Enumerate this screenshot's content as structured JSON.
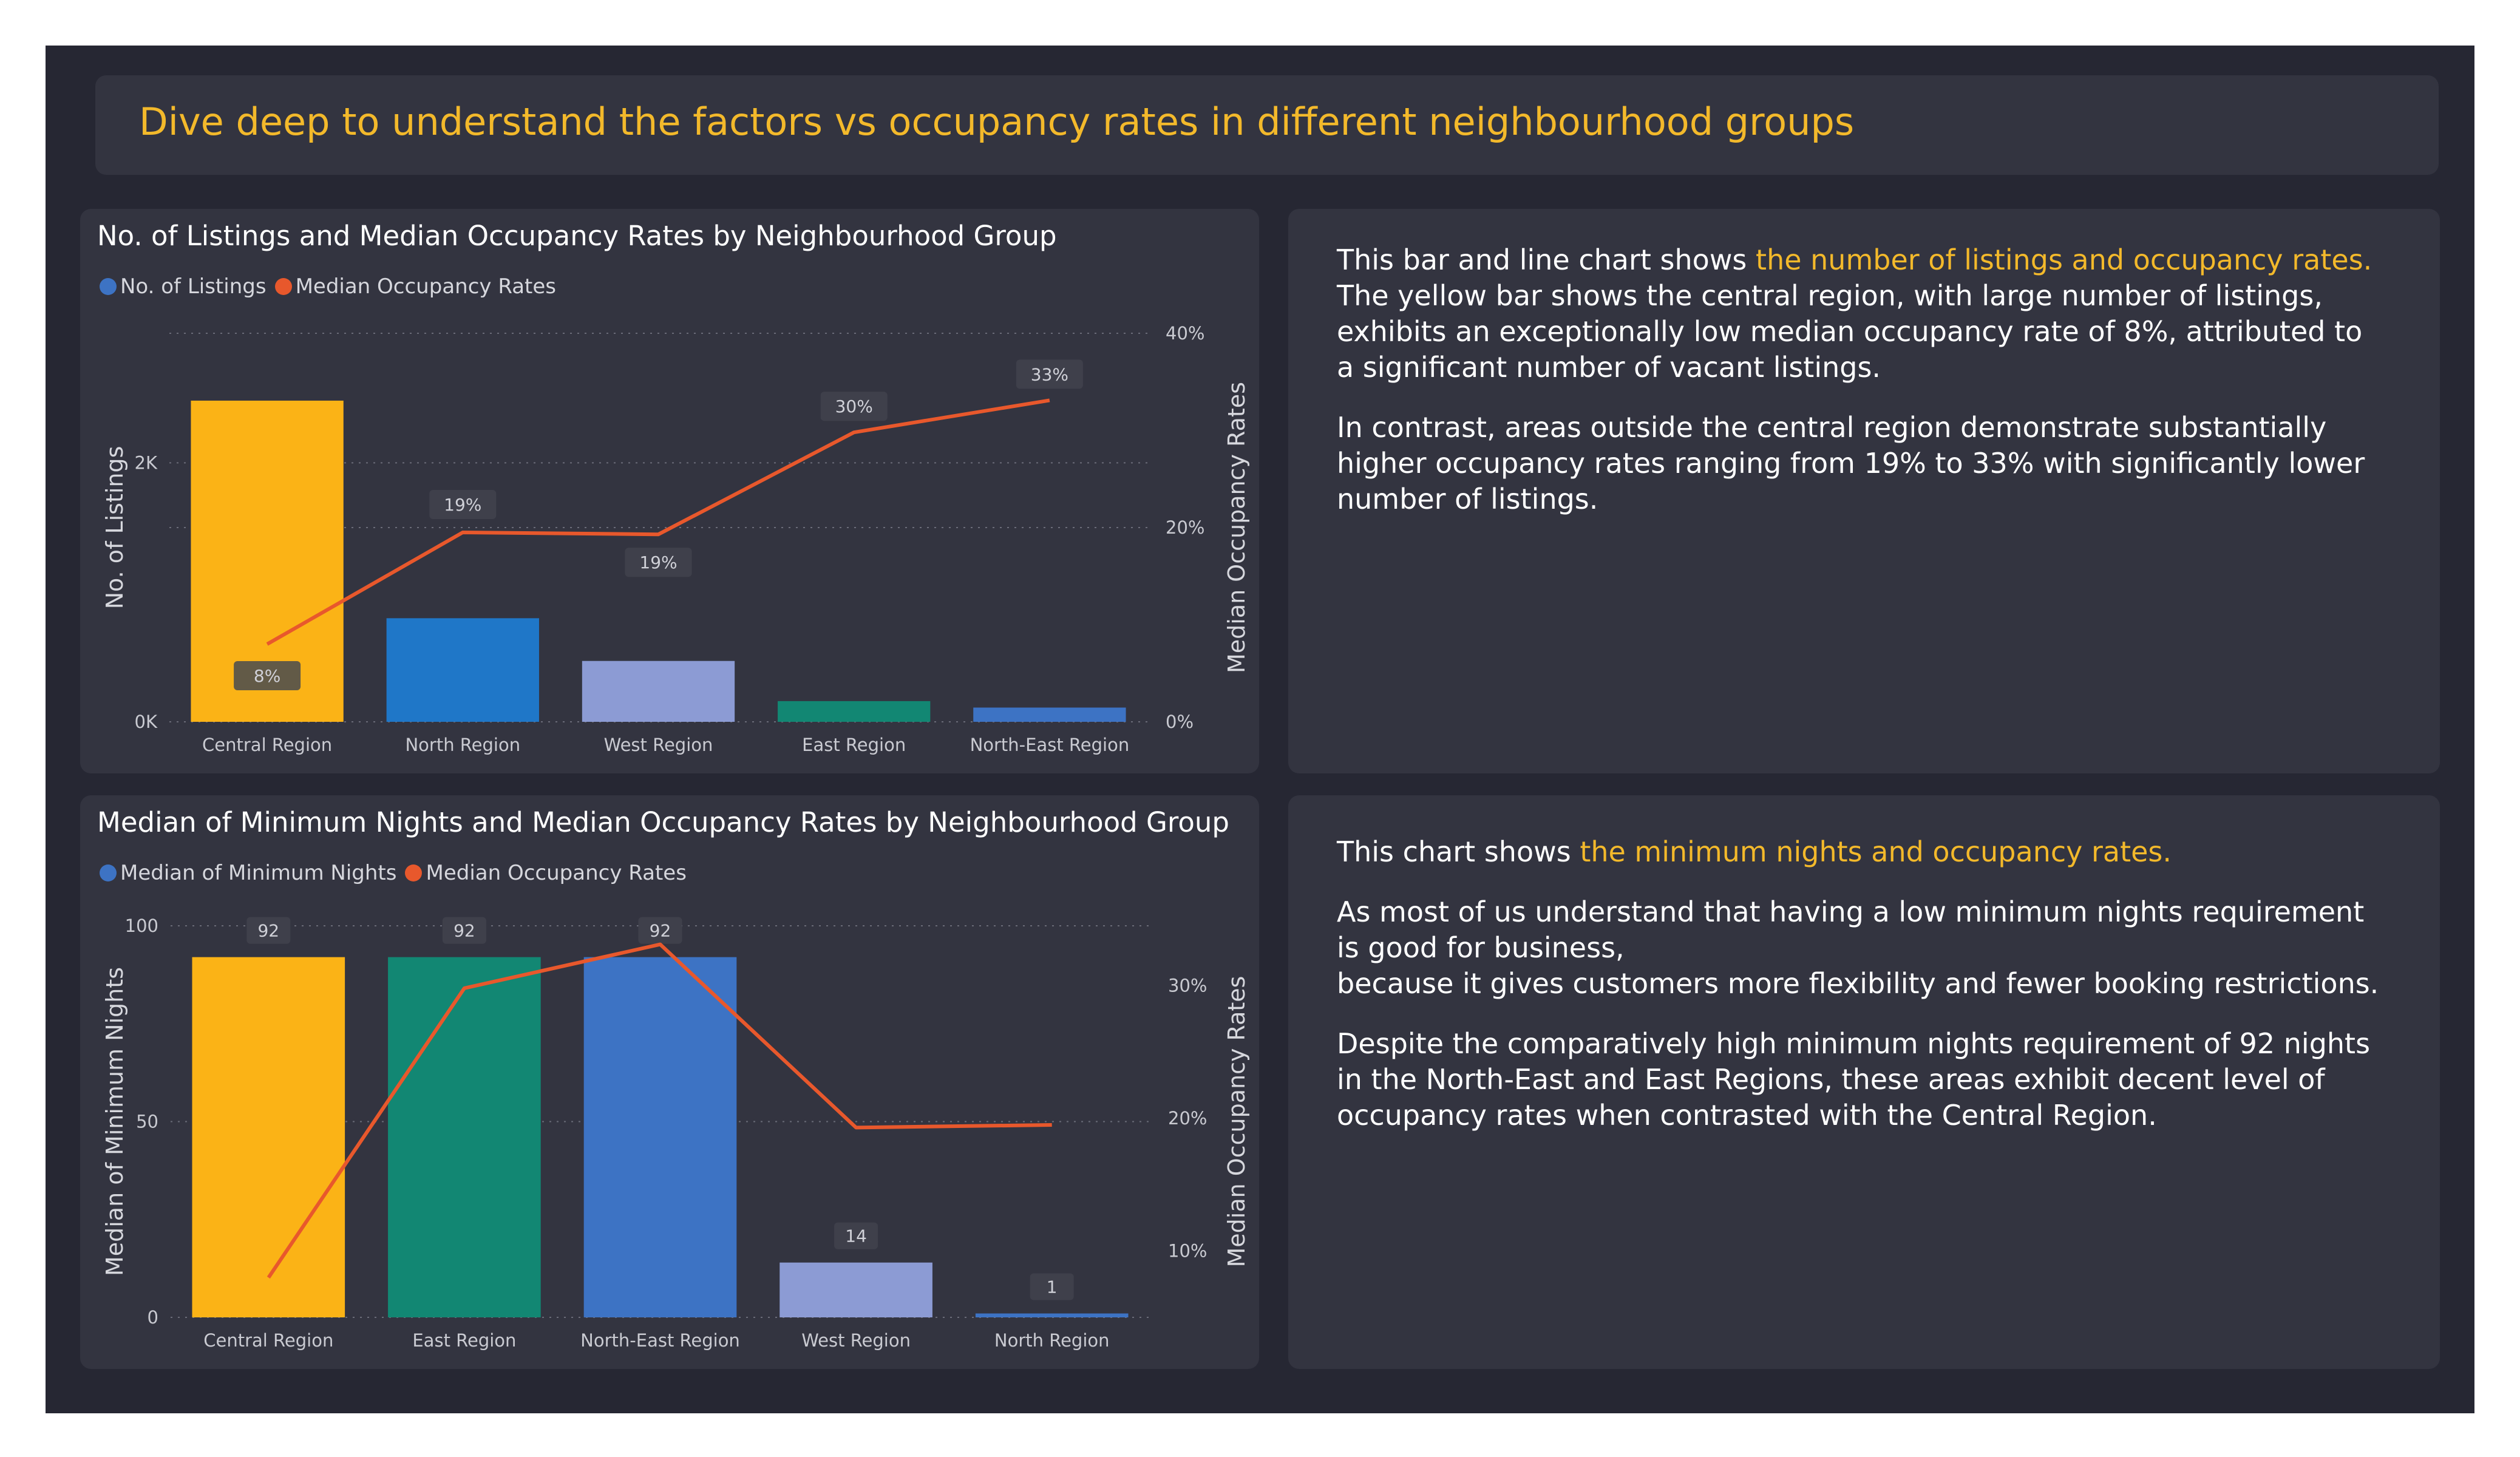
{
  "header": {
    "title": "Dive deep to understand the factors vs occupancy rates in different neighbourhood groups"
  },
  "colors": {
    "background": "#262733",
    "panel": "#333440",
    "accent": "#f3b92b",
    "line": "#e8582c",
    "legend_blue": "#3d73c4"
  },
  "chart_data": [
    {
      "type": "bar",
      "title": "No. of Listings and Median Occupancy Rates by Neighbourhood Group",
      "legend": [
        "No. of Listings",
        "Median Occupancy Rates"
      ],
      "legend_placement": "top-left",
      "categories": [
        "Central Region",
        "North Region",
        "West Region",
        "East Region",
        "North-East Region"
      ],
      "bar_colors": [
        "#fbb316",
        "#1f77c8",
        "#8c9bd4",
        "#128773",
        "#3d73c4"
      ],
      "series": [
        {
          "name": "No. of Listings",
          "type": "bar",
          "axis": "left",
          "values": [
            2480,
            800,
            470,
            160,
            110
          ]
        },
        {
          "name": "Median Occupancy Rates",
          "type": "line",
          "axis": "right",
          "values": [
            8,
            19.5,
            19.3,
            29.8,
            33.1
          ],
          "labels": [
            "8%",
            "19%",
            "19%",
            "30%",
            "33%"
          ]
        }
      ],
      "ylabel": "No. of Listings",
      "y2label": "Median Occupancy Rates",
      "ylim": [
        0,
        3000
      ],
      "yticks": [
        0,
        2000
      ],
      "ytick_labels": [
        "0K",
        "2K"
      ],
      "y2lim": [
        0,
        40
      ],
      "y2ticks": [
        0,
        20,
        40
      ],
      "y2tick_labels": [
        "0%",
        "20%",
        "40%"
      ],
      "grid": true
    },
    {
      "type": "bar",
      "title": "Median of Minimum Nights and Median Occupancy Rates by Neighbourhood Group",
      "legend": [
        "Median of Minimum Nights",
        "Median Occupancy Rates"
      ],
      "legend_placement": "top-left",
      "categories": [
        "Central Region",
        "East Region",
        "North-East Region",
        "West Region",
        "North Region"
      ],
      "bar_colors": [
        "#fbb316",
        "#128773",
        "#3d73c4",
        "#8c9bd4",
        "#3d73c4"
      ],
      "series": [
        {
          "name": "Median of Minimum Nights",
          "type": "bar",
          "axis": "left",
          "values": [
            92,
            92,
            92,
            14,
            1
          ],
          "labels": [
            "92",
            "92",
            "92",
            "14",
            "1"
          ]
        },
        {
          "name": "Median Occupancy Rates",
          "type": "line",
          "axis": "right",
          "values": [
            8,
            29.8,
            33.1,
            19.3,
            19.5
          ]
        }
      ],
      "ylabel": "Median of Minimum Nights",
      "y2label": "Median Occupancy Rates",
      "ylim": [
        0,
        100
      ],
      "yticks": [
        0,
        50,
        100
      ],
      "ytick_labels": [
        "0",
        "50",
        "100"
      ],
      "y2lim": [
        5,
        34.5
      ],
      "y2ticks": [
        10,
        20,
        30
      ],
      "y2tick_labels": [
        "10%",
        "20%",
        "30%"
      ],
      "grid": true
    }
  ],
  "text1": {
    "p1_pre": "This bar and line chart shows ",
    "p1_hl": "the number of listings and occupancy rates.",
    "p1_post": "The yellow bar shows the central region, with large number of listings, exhibits an exceptionally low median occupancy rate of 8%, attributed to a significant number of vacant listings.",
    "p2": "In contrast, areas outside the central region demonstrate substantially higher occupancy rates ranging from 19% to 33% with significantly lower number of listings."
  },
  "text2": {
    "p1_pre": "This chart shows ",
    "p1_hl": "the minimum nights and occupancy rates.",
    "p2a": "As most of us understand that having a low minimum nights requirement is good for business,",
    "p2b": "because it gives customers more flexibility and fewer booking restrictions.",
    "p3": "Despite the comparatively high minimum nights requirement of 92 nights in the North-East and East Regions, these areas exhibit decent level of occupancy rates when contrasted with the Central Region."
  }
}
